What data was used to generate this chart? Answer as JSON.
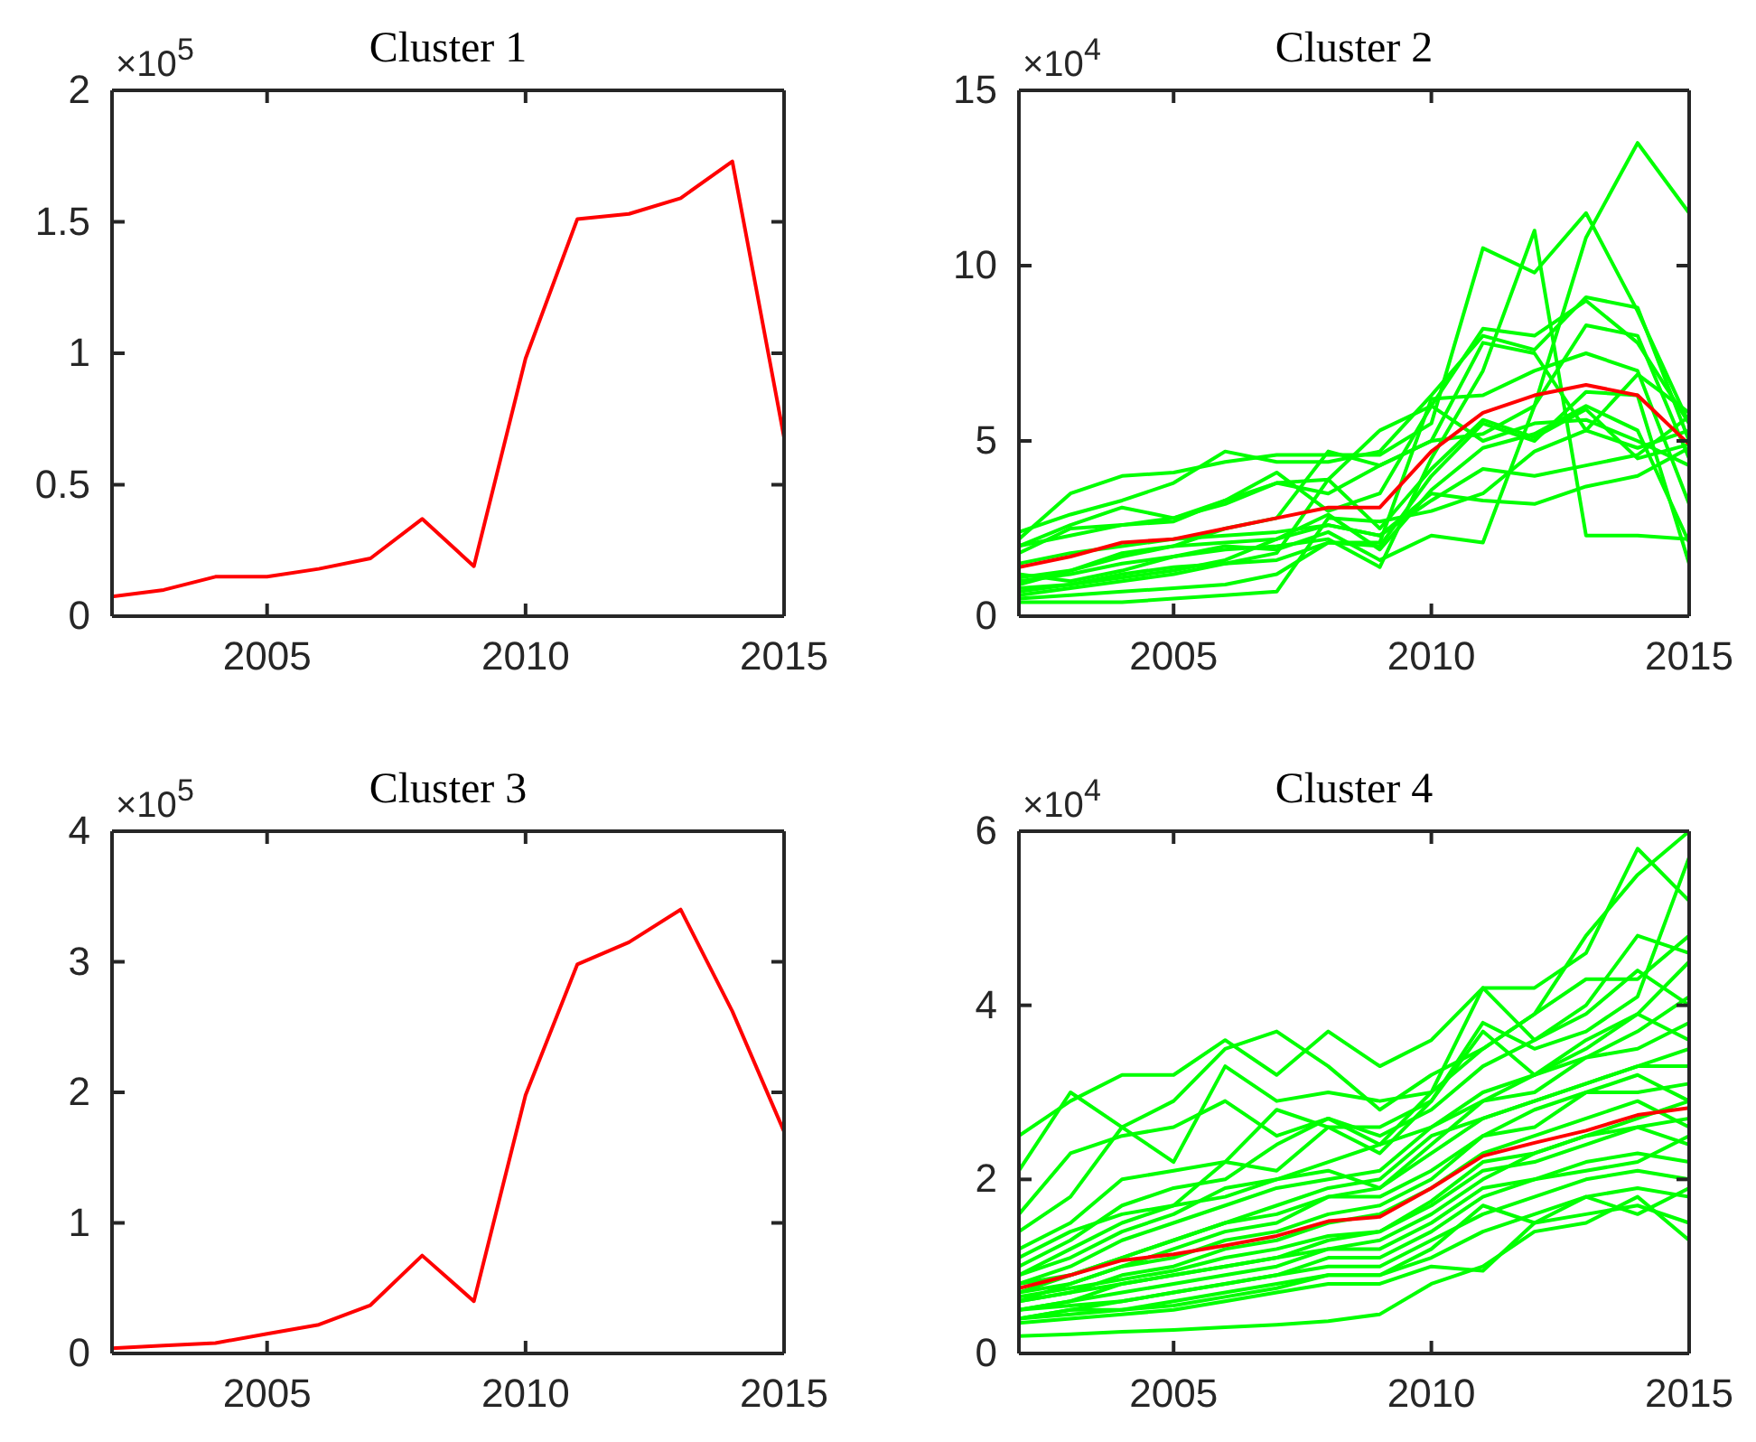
{
  "chart_data": [
    {
      "type": "line",
      "title": "Cluster 1",
      "annotations": [
        "×10$^{5}$"
      ],
      "x": [
        2002,
        2003,
        2004,
        2005,
        2006,
        2007,
        2008,
        2009,
        2010,
        2011,
        2012,
        2013,
        2014,
        2015
      ],
      "xlim": [
        2002,
        2015
      ],
      "xticks": [
        2005,
        2010,
        2015
      ],
      "ylim": [
        0,
        2
      ],
      "yticks": [
        0,
        0.5,
        1,
        1.5,
        2
      ],
      "grid": false,
      "series": [
        {
          "color": "#ff0000",
          "values": [
            0.075,
            0.1,
            0.15,
            0.15,
            0.18,
            0.22,
            0.37,
            0.19,
            0.98,
            1.51,
            1.53,
            1.59,
            1.73,
            0.68
          ]
        }
      ]
    },
    {
      "type": "line",
      "title": "Cluster 2",
      "annotations": [
        "×10$^{4}$"
      ],
      "x": [
        2002,
        2003,
        2004,
        2005,
        2006,
        2007,
        2008,
        2009,
        2010,
        2011,
        2012,
        2013,
        2014,
        2015
      ],
      "xlim": [
        2002,
        2015
      ],
      "xticks": [
        2005,
        2010,
        2015
      ],
      "ylim": [
        0,
        15
      ],
      "yticks": [
        0,
        5,
        10,
        15
      ],
      "grid": false,
      "series": [
        {
          "color": "#00ff00",
          "values": [
            2.0,
            2.3,
            2.6,
            2.8,
            3.3,
            3.8,
            3.5,
            4.3,
            5.0,
            5.2,
            6.0,
            10.8,
            13.5,
            11.5
          ]
        },
        {
          "color": "#00ff00",
          "values": [
            2.2,
            3.5,
            4.0,
            4.1,
            4.4,
            4.6,
            4.6,
            4.6,
            5.5,
            10.5,
            9.8,
            11.5,
            8.7,
            5.5
          ]
        },
        {
          "color": "#00ff00",
          "values": [
            1.0,
            1.2,
            1.5,
            1.7,
            1.9,
            2.0,
            2.2,
            1.4,
            4.5,
            7.0,
            11.0,
            2.3,
            2.3,
            2.2
          ]
        },
        {
          "color": "#00ff00",
          "values": [
            2.4,
            2.9,
            3.3,
            3.8,
            4.7,
            4.4,
            4.4,
            4.7,
            6.3,
            8.0,
            7.6,
            9.1,
            8.8,
            5.0
          ]
        },
        {
          "color": "#00ff00",
          "values": [
            1.8,
            2.5,
            2.6,
            2.7,
            3.3,
            4.1,
            3.0,
            3.5,
            6.0,
            8.2,
            8.0,
            9.0,
            7.8,
            5.5
          ]
        },
        {
          "color": "#00ff00",
          "values": [
            0.9,
            1.3,
            1.7,
            2.0,
            2.5,
            2.8,
            4.7,
            4.3,
            5.0,
            7.8,
            7.5,
            5.3,
            6.9,
            5.8
          ]
        },
        {
          "color": "#00ff00",
          "values": [
            1.2,
            1.0,
            1.3,
            1.7,
            2.0,
            1.9,
            2.4,
            1.6,
            2.3,
            2.1,
            6.0,
            8.3,
            8.0,
            4.5
          ]
        },
        {
          "color": "#00ff00",
          "values": [
            0.6,
            0.8,
            1.0,
            1.2,
            1.5,
            1.6,
            2.1,
            2.1,
            6.2,
            6.3,
            7.0,
            7.5,
            7.0,
            3.2
          ]
        },
        {
          "color": "#00ff00",
          "values": [
            0.5,
            0.6,
            0.7,
            0.8,
            0.9,
            1.2,
            2.1,
            2.0,
            4.0,
            5.5,
            5.0,
            6.4,
            6.3,
            1.5
          ]
        },
        {
          "color": "#00ff00",
          "values": [
            0.4,
            0.4,
            0.4,
            0.5,
            0.6,
            0.7,
            2.8,
            2.7,
            3.0,
            3.5,
            4.7,
            5.3,
            4.8,
            5.3
          ]
        },
        {
          "color": "#00ff00",
          "values": [
            0.8,
            0.9,
            1.1,
            1.3,
            1.6,
            2.2,
            2.6,
            2.3,
            3.3,
            4.2,
            4.0,
            4.3,
            4.6,
            5.7
          ]
        },
        {
          "color": "#00ff00",
          "values": [
            1.5,
            1.8,
            2.0,
            2.2,
            2.3,
            2.4,
            2.6,
            2.3,
            3.5,
            3.3,
            3.2,
            3.7,
            4.0,
            4.8
          ]
        },
        {
          "color": "#00ff00",
          "values": [
            2.0,
            2.6,
            3.1,
            2.8,
            3.2,
            3.8,
            3.9,
            5.3,
            6.0,
            5.0,
            5.5,
            5.6,
            5.0,
            4.3
          ]
        },
        {
          "color": "#00ff00",
          "values": [
            1.1,
            1.3,
            1.8,
            2.0,
            2.1,
            2.2,
            2.9,
            1.9,
            3.6,
            4.8,
            5.2,
            6.0,
            5.3,
            2.1
          ]
        },
        {
          "color": "#00ff00",
          "values": [
            0.7,
            0.9,
            1.2,
            1.4,
            1.5,
            1.8,
            3.9,
            2.5,
            4.2,
            5.6,
            5.1,
            5.9,
            4.5,
            4.9
          ]
        },
        {
          "color": "#ff0000",
          "values": [
            1.4,
            1.7,
            2.1,
            2.2,
            2.5,
            2.8,
            3.1,
            3.1,
            4.7,
            5.8,
            6.3,
            6.6,
            6.3,
            4.9
          ]
        }
      ]
    },
    {
      "type": "line",
      "title": "Cluster 3",
      "annotations": [
        "×10$^{5}$"
      ],
      "x": [
        2002,
        2003,
        2004,
        2005,
        2006,
        2007,
        2008,
        2009,
        2010,
        2011,
        2012,
        2013,
        2014,
        2015
      ],
      "xlim": [
        2002,
        2015
      ],
      "xticks": [
        2005,
        2010,
        2015
      ],
      "ylim": [
        0,
        4
      ],
      "yticks": [
        0,
        1,
        2,
        3,
        4
      ],
      "grid": false,
      "series": [
        {
          "color": "#ff0000",
          "values": [
            0.04,
            0.06,
            0.08,
            0.15,
            0.22,
            0.37,
            0.75,
            0.4,
            1.98,
            2.98,
            3.15,
            3.4,
            2.62,
            1.7
          ]
        }
      ]
    },
    {
      "type": "line",
      "title": "Cluster 4",
      "annotations": [
        "×10$^{4}$"
      ],
      "x": [
        2002,
        2003,
        2004,
        2005,
        2006,
        2007,
        2008,
        2009,
        2010,
        2011,
        2012,
        2013,
        2014,
        2015
      ],
      "xlim": [
        2002,
        2015
      ],
      "xticks": [
        2005,
        2010,
        2015
      ],
      "ylim": [
        0,
        6
      ],
      "yticks": [
        0,
        2,
        4,
        6
      ],
      "grid": false,
      "series": [
        {
          "color": "#00ff00",
          "values": [
            2.5,
            2.9,
            3.2,
            3.2,
            3.6,
            3.2,
            3.7,
            3.3,
            3.6,
            4.2,
            4.2,
            4.6,
            5.8,
            5.2
          ]
        },
        {
          "color": "#00ff00",
          "values": [
            2.1,
            3.0,
            2.6,
            2.9,
            3.5,
            3.7,
            3.3,
            2.8,
            3.2,
            3.5,
            3.9,
            4.8,
            5.5,
            6.0
          ]
        },
        {
          "color": "#00ff00",
          "values": [
            1.6,
            2.3,
            2.5,
            2.6,
            2.9,
            2.5,
            2.7,
            2.4,
            3.0,
            4.2,
            3.6,
            4.0,
            4.8,
            4.6
          ]
        },
        {
          "color": "#00ff00",
          "values": [
            1.4,
            1.8,
            2.6,
            2.2,
            3.3,
            2.9,
            3.0,
            2.9,
            3.0,
            3.5,
            3.9,
            4.3,
            4.3,
            4.8
          ]
        },
        {
          "color": "#00ff00",
          "values": [
            1.2,
            1.5,
            2.0,
            2.1,
            2.2,
            2.8,
            2.6,
            2.3,
            2.9,
            3.8,
            3.5,
            3.7,
            4.1,
            5.7
          ]
        },
        {
          "color": "#00ff00",
          "values": [
            1.0,
            1.3,
            1.7,
            1.9,
            2.0,
            2.4,
            2.7,
            2.5,
            2.8,
            3.3,
            3.6,
            3.9,
            4.4,
            4.0
          ]
        },
        {
          "color": "#00ff00",
          "values": [
            0.9,
            1.2,
            1.5,
            1.7,
            1.8,
            2.0,
            2.2,
            2.4,
            2.6,
            3.0,
            3.2,
            3.6,
            3.9,
            3.6
          ]
        },
        {
          "color": "#00ff00",
          "values": [
            0.8,
            1.0,
            1.3,
            1.5,
            1.7,
            1.9,
            2.0,
            2.1,
            2.6,
            2.9,
            3.0,
            3.4,
            3.5,
            3.8
          ]
        },
        {
          "color": "#00ff00",
          "values": [
            0.7,
            0.9,
            1.1,
            1.3,
            1.5,
            1.7,
            1.9,
            2.0,
            2.5,
            2.7,
            2.9,
            3.1,
            3.3,
            3.3
          ]
        },
        {
          "color": "#00ff00",
          "values": [
            0.6,
            0.8,
            1.0,
            1.2,
            1.4,
            1.5,
            1.8,
            1.8,
            2.1,
            2.5,
            2.6,
            3.0,
            3.0,
            3.1
          ]
        },
        {
          "color": "#00ff00",
          "values": [
            0.6,
            0.7,
            0.9,
            1.0,
            1.2,
            1.3,
            1.5,
            1.6,
            1.9,
            2.3,
            2.5,
            2.7,
            2.9,
            2.6
          ]
        },
        {
          "color": "#00ff00",
          "values": [
            0.5,
            0.6,
            0.8,
            0.9,
            1.0,
            1.1,
            1.3,
            1.4,
            1.7,
            2.1,
            2.2,
            2.4,
            2.6,
            2.4
          ]
        },
        {
          "color": "#00ff00",
          "values": [
            0.5,
            0.6,
            0.7,
            0.8,
            0.9,
            1.0,
            1.2,
            1.2,
            1.5,
            1.9,
            2.0,
            2.2,
            2.3,
            2.2
          ]
        },
        {
          "color": "#00ff00",
          "values": [
            0.4,
            0.5,
            0.6,
            0.7,
            0.8,
            0.9,
            1.0,
            1.0,
            1.3,
            1.6,
            1.8,
            2.0,
            2.1,
            2.0
          ]
        },
        {
          "color": "#00ff00",
          "values": [
            0.4,
            0.5,
            0.5,
            0.6,
            0.7,
            0.8,
            0.9,
            0.9,
            1.1,
            1.4,
            1.6,
            1.8,
            1.9,
            1.8
          ]
        },
        {
          "color": "#00ff00",
          "values": [
            0.35,
            0.4,
            0.45,
            0.5,
            0.6,
            0.7,
            0.8,
            0.8,
            1.0,
            0.95,
            1.5,
            1.6,
            1.7,
            1.5
          ]
        },
        {
          "color": "#00ff00",
          "values": [
            0.2,
            0.22,
            0.25,
            0.27,
            0.3,
            0.33,
            0.37,
            0.45,
            0.8,
            1.0,
            1.4,
            1.5,
            1.8,
            1.3
          ]
        },
        {
          "color": "#00ff00",
          "values": [
            0.9,
            1.1,
            1.4,
            1.6,
            1.9,
            2.0,
            2.1,
            1.9,
            2.4,
            2.9,
            3.2,
            3.4,
            3.7,
            4.1
          ]
        },
        {
          "color": "#00ff00",
          "values": [
            0.7,
            0.8,
            1.0,
            1.1,
            1.3,
            1.4,
            1.6,
            1.7,
            2.0,
            2.5,
            2.8,
            3.0,
            3.2,
            2.9
          ]
        },
        {
          "color": "#00ff00",
          "values": [
            0.6,
            0.7,
            0.8,
            0.9,
            1.0,
            1.1,
            1.2,
            1.3,
            1.6,
            2.0,
            2.3,
            2.5,
            2.7,
            2.9
          ]
        },
        {
          "color": "#00ff00",
          "values": [
            0.8,
            0.9,
            1.1,
            1.3,
            1.5,
            1.6,
            1.8,
            1.9,
            2.3,
            2.7,
            2.9,
            3.1,
            3.3,
            3.5
          ]
        },
        {
          "color": "#00ff00",
          "values": [
            0.5,
            0.55,
            0.6,
            0.7,
            0.8,
            0.9,
            1.1,
            1.1,
            1.4,
            1.8,
            2.0,
            2.1,
            2.2,
            2.5
          ]
        },
        {
          "color": "#00ff00",
          "values": [
            1.1,
            1.4,
            1.6,
            1.7,
            2.2,
            2.1,
            2.6,
            2.6,
            2.9,
            3.7,
            3.2,
            3.5,
            3.9,
            4.5
          ]
        },
        {
          "color": "#00ff00",
          "values": [
            0.4,
            0.45,
            0.5,
            0.55,
            0.65,
            0.75,
            0.9,
            0.9,
            1.2,
            1.7,
            1.5,
            1.8,
            1.6,
            1.9
          ]
        },
        {
          "color": "#00ff00",
          "values": [
            0.65,
            0.75,
            0.85,
            0.95,
            1.1,
            1.2,
            1.35,
            1.4,
            1.75,
            2.2,
            2.3,
            2.5,
            2.6,
            2.7
          ]
        },
        {
          "color": "#ff0000",
          "values": [
            0.75,
            0.9,
            1.07,
            1.14,
            1.24,
            1.35,
            1.52,
            1.57,
            1.9,
            2.27,
            2.42,
            2.56,
            2.74,
            2.82
          ]
        }
      ]
    }
  ]
}
